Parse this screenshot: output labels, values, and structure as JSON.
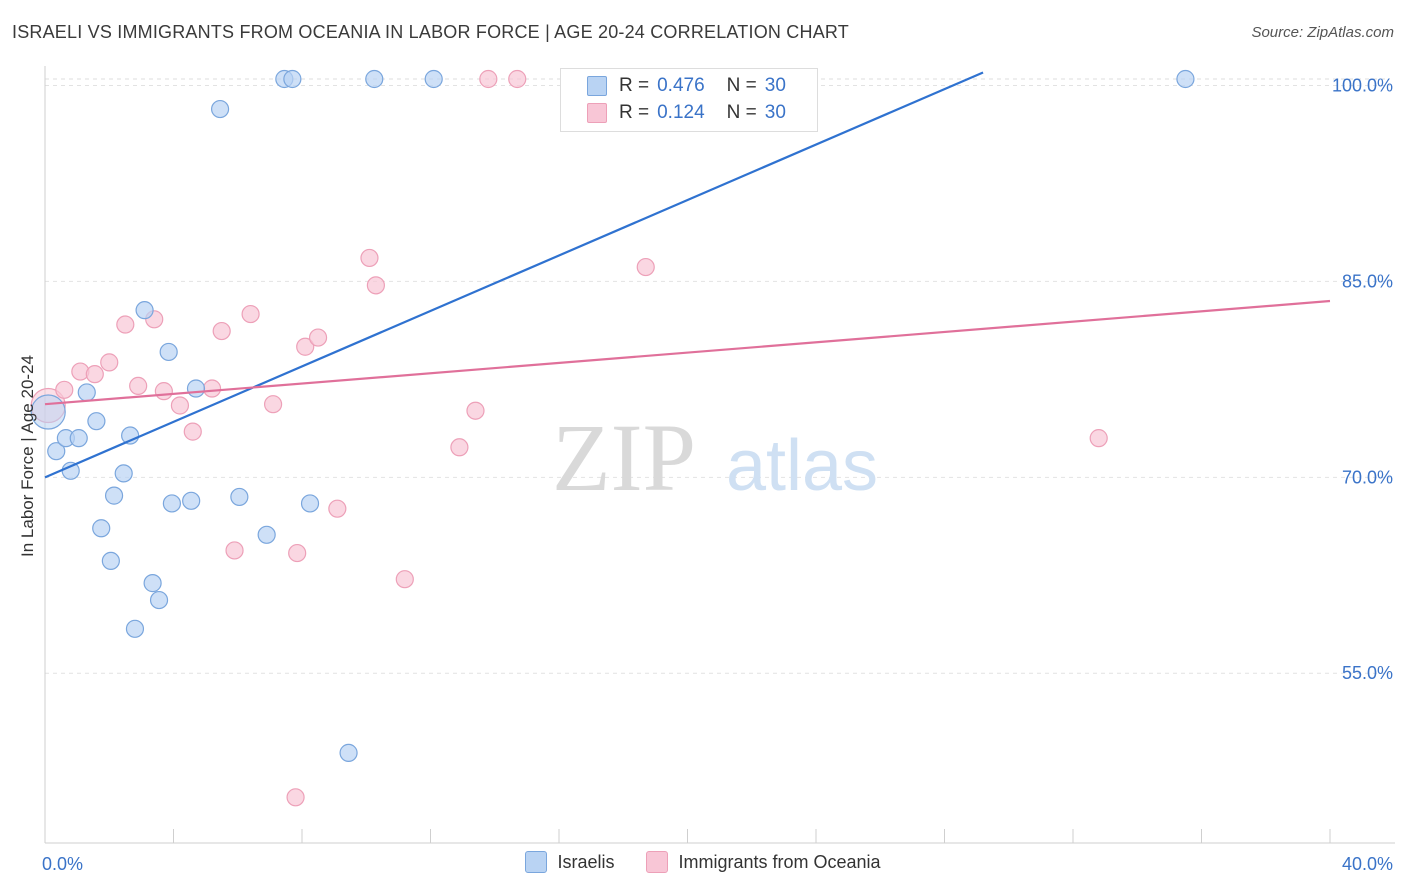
{
  "header": {
    "title": "ISRAELI VS IMMIGRANTS FROM OCEANIA IN LABOR FORCE | AGE 20-24 CORRELATION CHART",
    "source": "Source: ZipAtlas.com"
  },
  "legend_top": {
    "rows": [
      {
        "r_label": "R =",
        "r_value": "0.476",
        "n_label": "N =",
        "n_value": "30"
      },
      {
        "r_label": "R =",
        "r_value": "0.124",
        "n_label": "N =",
        "n_value": "30"
      }
    ]
  },
  "legend_bottom": {
    "israelis": "Israelis",
    "oceania": "Immigrants from Oceania"
  },
  "watermark": {
    "zip": "ZIP",
    "atlas": "atlas"
  },
  "colors": {
    "blue_fill": "#b9d3f3",
    "blue_stroke": "#7aa6dd",
    "blue_line": "#2f72d0",
    "pink_fill": "#f8c6d6",
    "pink_stroke": "#eda0b8",
    "pink_line": "#e0709a",
    "axis_text": "#3a73c8"
  },
  "chart_data": {
    "type": "scatter",
    "title": "ISRAELI VS IMMIGRANTS FROM OCEANIA IN LABOR FORCE | AGE 20-24 CORRELATION CHART",
    "xlabel": "",
    "ylabel": "In Labor Force | Age 20-24",
    "xlim": [
      0,
      40
    ],
    "ylim": [
      42,
      101.5
    ],
    "x_tick_labels": [
      "0.0%",
      "40.0%"
    ],
    "y_ticks": [
      55,
      70,
      85,
      100
    ],
    "y_tick_labels": [
      "55.0%",
      "70.0%",
      "85.0%",
      "100.0%"
    ],
    "grid": true,
    "legend": "top-center",
    "series": [
      {
        "name": "Israelis",
        "r": 0.476,
        "n": 30,
        "trend": {
          "x": [
            0,
            29.2
          ],
          "y": [
            70.0,
            101.0
          ]
        },
        "points": [
          {
            "x": 0.1,
            "y": 75.0,
            "big": true
          },
          {
            "x": 0.35,
            "y": 72.0
          },
          {
            "x": 0.65,
            "y": 73.0
          },
          {
            "x": 0.8,
            "y": 70.5
          },
          {
            "x": 1.05,
            "y": 73.0
          },
          {
            "x": 1.3,
            "y": 76.5
          },
          {
            "x": 1.6,
            "y": 74.3
          },
          {
            "x": 1.75,
            "y": 66.1
          },
          {
            "x": 2.05,
            "y": 63.6
          },
          {
            "x": 2.15,
            "y": 68.6
          },
          {
            "x": 2.45,
            "y": 70.3
          },
          {
            "x": 2.65,
            "y": 73.2
          },
          {
            "x": 2.8,
            "y": 58.4
          },
          {
            "x": 3.1,
            "y": 82.8
          },
          {
            "x": 3.35,
            "y": 61.9
          },
          {
            "x": 3.55,
            "y": 60.6
          },
          {
            "x": 3.85,
            "y": 79.6
          },
          {
            "x": 3.95,
            "y": 68.0
          },
          {
            "x": 4.55,
            "y": 68.2
          },
          {
            "x": 4.7,
            "y": 76.8
          },
          {
            "x": 5.45,
            "y": 98.2
          },
          {
            "x": 6.05,
            "y": 68.5
          },
          {
            "x": 6.9,
            "y": 65.6
          },
          {
            "x": 7.45,
            "y": 100.5
          },
          {
            "x": 7.7,
            "y": 100.5
          },
          {
            "x": 8.25,
            "y": 68.0
          },
          {
            "x": 9.45,
            "y": 48.9
          },
          {
            "x": 10.25,
            "y": 100.5
          },
          {
            "x": 12.1,
            "y": 100.5
          },
          {
            "x": 35.5,
            "y": 100.5
          }
        ]
      },
      {
        "name": "Immigrants from Oceania",
        "r": 0.124,
        "n": 30,
        "trend": {
          "x": [
            0,
            40
          ],
          "y": [
            75.6,
            83.5
          ]
        },
        "points": [
          {
            "x": 0.1,
            "y": 75.5,
            "big": true
          },
          {
            "x": 0.6,
            "y": 76.7
          },
          {
            "x": 1.1,
            "y": 78.1
          },
          {
            "x": 1.55,
            "y": 77.9
          },
          {
            "x": 2.0,
            "y": 78.8
          },
          {
            "x": 2.5,
            "y": 81.7
          },
          {
            "x": 2.9,
            "y": 77.0
          },
          {
            "x": 3.4,
            "y": 82.1
          },
          {
            "x": 3.7,
            "y": 76.6
          },
          {
            "x": 4.2,
            "y": 75.5
          },
          {
            "x": 4.6,
            "y": 73.5
          },
          {
            "x": 5.2,
            "y": 76.8
          },
          {
            "x": 5.5,
            "y": 81.2
          },
          {
            "x": 5.9,
            "y": 64.4
          },
          {
            "x": 6.4,
            "y": 82.5
          },
          {
            "x": 7.1,
            "y": 75.6
          },
          {
            "x": 7.8,
            "y": 45.5
          },
          {
            "x": 7.85,
            "y": 64.2
          },
          {
            "x": 8.1,
            "y": 80.0
          },
          {
            "x": 8.5,
            "y": 80.7
          },
          {
            "x": 9.1,
            "y": 67.6
          },
          {
            "x": 10.1,
            "y": 86.8
          },
          {
            "x": 10.3,
            "y": 84.7
          },
          {
            "x": 11.2,
            "y": 62.2
          },
          {
            "x": 12.9,
            "y": 72.3
          },
          {
            "x": 13.4,
            "y": 75.1
          },
          {
            "x": 13.8,
            "y": 100.5
          },
          {
            "x": 14.7,
            "y": 100.5
          },
          {
            "x": 18.7,
            "y": 86.1
          },
          {
            "x": 32.8,
            "y": 73.0
          }
        ]
      }
    ]
  }
}
